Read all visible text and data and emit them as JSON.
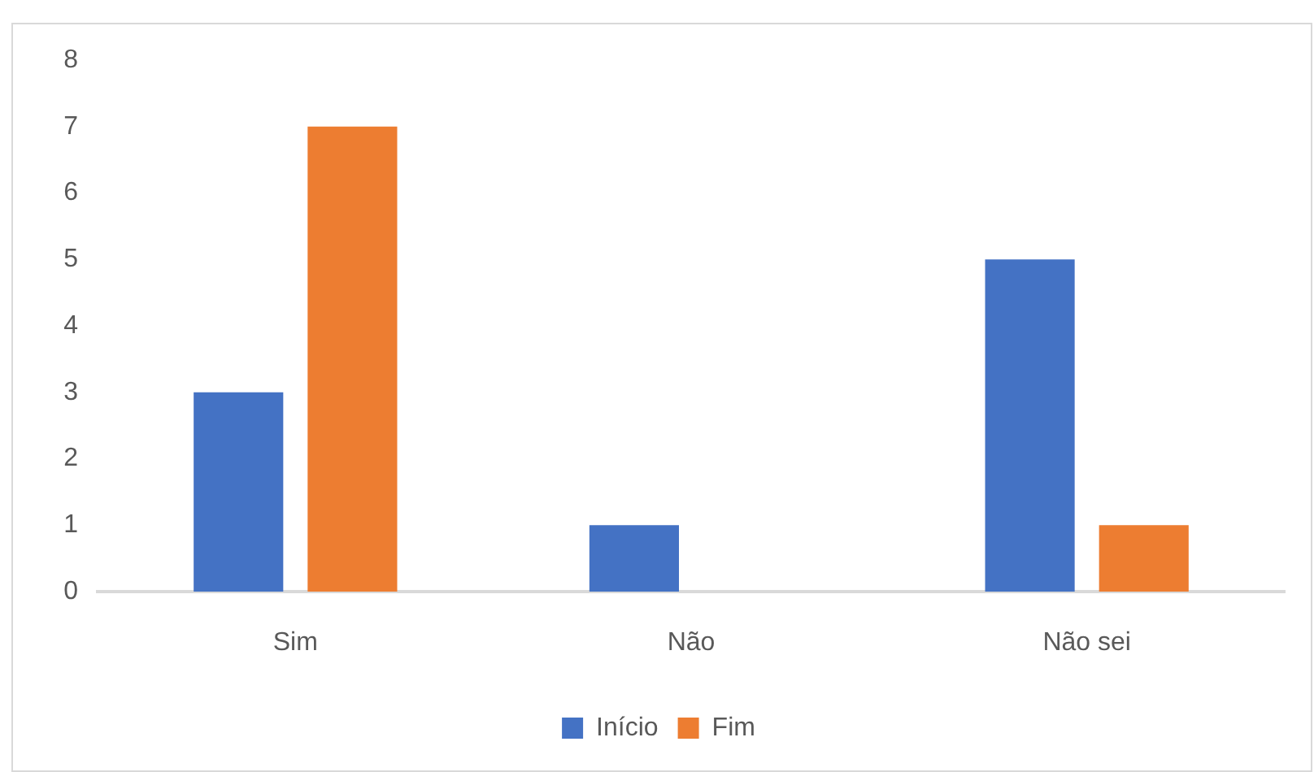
{
  "chart_data": {
    "type": "bar",
    "categories": [
      "Sim",
      "Não",
      "Não sei"
    ],
    "series": [
      {
        "name": "Início",
        "color": "#4472c4",
        "values": [
          3,
          1,
          5
        ]
      },
      {
        "name": "Fim",
        "color": "#ed7d31",
        "values": [
          7,
          0,
          1
        ]
      }
    ],
    "ylim": [
      0,
      8
    ],
    "yticks": [
      0,
      1,
      2,
      3,
      4,
      5,
      6,
      7,
      8
    ],
    "grid": false,
    "legend": "bottom"
  }
}
